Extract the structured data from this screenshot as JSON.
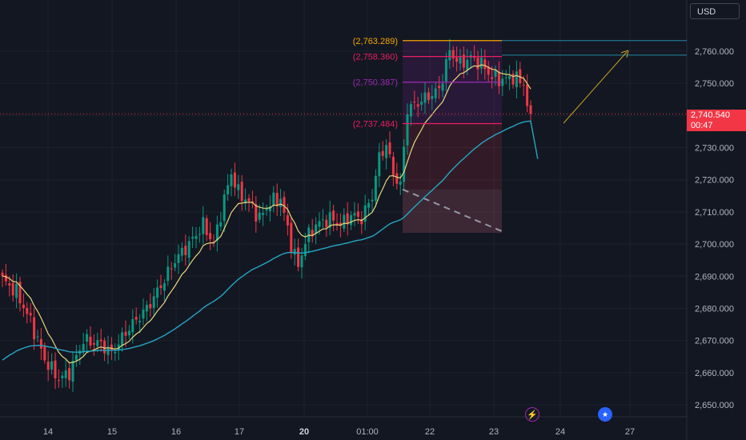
{
  "toolbar": {
    "currency_label": "USD"
  },
  "last_price": {
    "value": "2,740.540",
    "countdown": "00:47",
    "color": "#f23645"
  },
  "events": {
    "bolt_icon": "lightning-bolt-icon",
    "flag_icon": "us-flag-icon"
  },
  "colors": {
    "up": "#089981",
    "down": "#f23645",
    "ema_fast": "#e8d77e",
    "ema_slow": "#26a6c4",
    "target": "#f7a400",
    "level": "#e91e63",
    "mid": "#9c27b0",
    "bg": "#131722"
  },
  "chart_data": {
    "type": "candlestick",
    "y_axis": {
      "ticks": [
        2650,
        2660,
        2670,
        2680,
        2690,
        2700,
        2710,
        2720,
        2730,
        2740,
        2750,
        2760
      ],
      "tick_labels": [
        "2,650.000",
        "2,660.000",
        "2,670.000",
        "2,680.000",
        "2,690.000",
        "2,700.000",
        "2,710.000",
        "2,720.000",
        "2,730.000",
        "2,740.000",
        "2,750.000",
        "2,760.000"
      ]
    },
    "x_axis": {
      "labels": [
        "14",
        "15",
        "16",
        "17",
        "20",
        "01:00",
        "22",
        "23",
        "24",
        "27"
      ]
    },
    "levels": [
      {
        "label": "(2,763.289)",
        "value": 2763.289,
        "color": "#f7a400"
      },
      {
        "label": "(2,758.360)",
        "value": 2758.36,
        "color": "#e91e63"
      },
      {
        "label": "(2,750.387)",
        "value": 2750.387,
        "color": "#9c27b0"
      },
      {
        "label": "(2,737.484)",
        "value": 2737.484,
        "color": "#e91e63"
      }
    ],
    "waypoints": [
      [
        0,
        2689
      ],
      [
        4,
        2685
      ],
      [
        8,
        2676
      ],
      [
        12,
        2664
      ],
      [
        16,
        2658
      ],
      [
        19,
        2660
      ],
      [
        23,
        2670
      ],
      [
        28,
        2669
      ],
      [
        31,
        2666
      ],
      [
        36,
        2674
      ],
      [
        41,
        2680
      ],
      [
        45,
        2687
      ],
      [
        49,
        2695
      ],
      [
        53,
        2700
      ],
      [
        57,
        2706
      ],
      [
        60,
        2700
      ],
      [
        63,
        2714
      ],
      [
        65,
        2722
      ],
      [
        67,
        2716
      ],
      [
        70,
        2713
      ],
      [
        73,
        2708
      ],
      [
        76,
        2713
      ],
      [
        79,
        2714
      ],
      [
        82,
        2700
      ],
      [
        84,
        2693
      ],
      [
        86,
        2701
      ],
      [
        89,
        2706
      ],
      [
        93,
        2708
      ],
      [
        96,
        2706
      ],
      [
        99,
        2709
      ],
      [
        102,
        2708
      ],
      [
        105,
        2715
      ],
      [
        107,
        2727
      ],
      [
        109,
        2731
      ],
      [
        111,
        2722
      ],
      [
        113,
        2718
      ],
      [
        115,
        2742
      ],
      [
        118,
        2744
      ],
      [
        121,
        2746
      ],
      [
        124,
        2748
      ],
      [
        127,
        2760
      ],
      [
        130,
        2756
      ],
      [
        133,
        2758
      ],
      [
        136,
        2756
      ],
      [
        139,
        2752
      ],
      [
        142,
        2751
      ],
      [
        145,
        2752
      ],
      [
        148,
        2750
      ],
      [
        150,
        2737
      ]
    ],
    "last_value": 2740.54
  }
}
